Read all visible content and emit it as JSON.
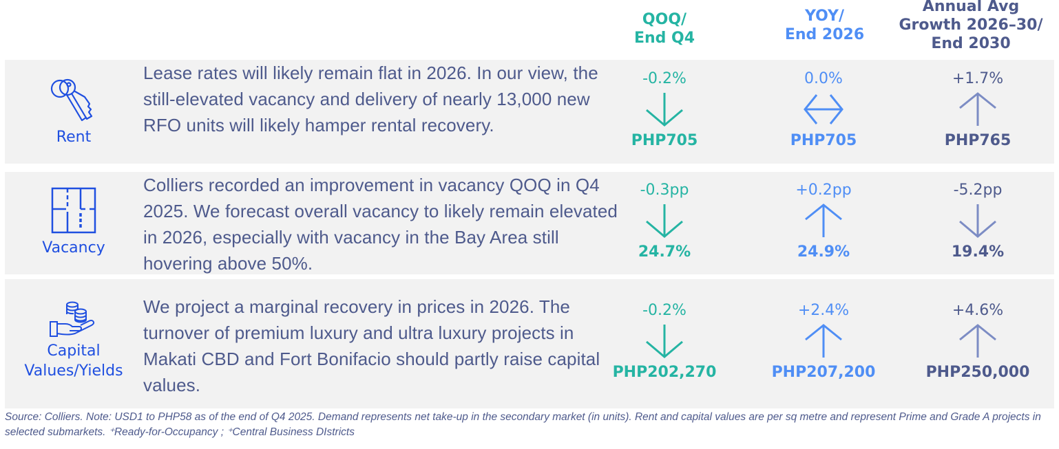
{
  "headers": {
    "qoq": [
      "QOQ/",
      "End Q4"
    ],
    "yoy": [
      "YOY/",
      "End 2026"
    ],
    "annual": [
      "Annual Avg",
      "Growth 2026–30/",
      "End 2030"
    ]
  },
  "colors": {
    "qoq": "#25b4a3",
    "yoy": "#4f8ef5",
    "annual": "#4e5a8c",
    "category": "#1f4fe0",
    "row_bg": "#f2f2f2"
  },
  "rows": [
    {
      "category": "Rent",
      "icon": "keys-icon",
      "description": "Lease rates will likely remain flat in 2026. In our view, the still-elevated vacancy and delivery of nearly 13,000 new RFO units will likely hamper rental recovery.",
      "qoq": {
        "change": "-0.2%",
        "direction": "down",
        "level": "PHP705"
      },
      "yoy": {
        "change": "0.0%",
        "direction": "flat",
        "level": "PHP705"
      },
      "annual": {
        "change": "+1.7%",
        "direction": "up",
        "level": "PHP765"
      }
    },
    {
      "category": "Vacancy",
      "icon": "floor-plan-icon",
      "description": "Colliers recorded an improvement in vacancy QOQ in Q4 2025. We forecast overall vacancy to likely remain elevated in 2026, especially with vacancy in the Bay Area still hovering above 50%.",
      "qoq": {
        "change": "-0.3pp",
        "direction": "down",
        "level": "24.7%"
      },
      "yoy": {
        "change": "+0.2pp",
        "direction": "up",
        "level": "24.9%"
      },
      "annual": {
        "change": "-5.2pp",
        "direction": "down",
        "level": "19.4%"
      }
    },
    {
      "category": "Capital Values/Yields",
      "icon": "coins-hand-icon",
      "description": "We project a marginal recovery in prices in 2026. The turnover of premium luxury and ultra luxury projects in Makati CBD and Fort Bonifacio should partly raise capital values.",
      "qoq": {
        "change": "-0.2%",
        "direction": "down",
        "level": "PHP202,270"
      },
      "yoy": {
        "change": "+2.4%",
        "direction": "up",
        "level": "PHP207,200"
      },
      "annual": {
        "change": "+4.6%",
        "direction": "up",
        "level": "PHP250,000"
      }
    }
  ],
  "footnote": "Source: Colliers. Note: USD1 to PHP58 as of the end of Q4 2025. Demand represents net take-up in the secondary market (in units). Rent and capital values are per sq metre and represent Prime and Grade A projects in selected submarkets. ⁺Ready-for-Occupancy ; ⁺Central Business DIstricts"
}
